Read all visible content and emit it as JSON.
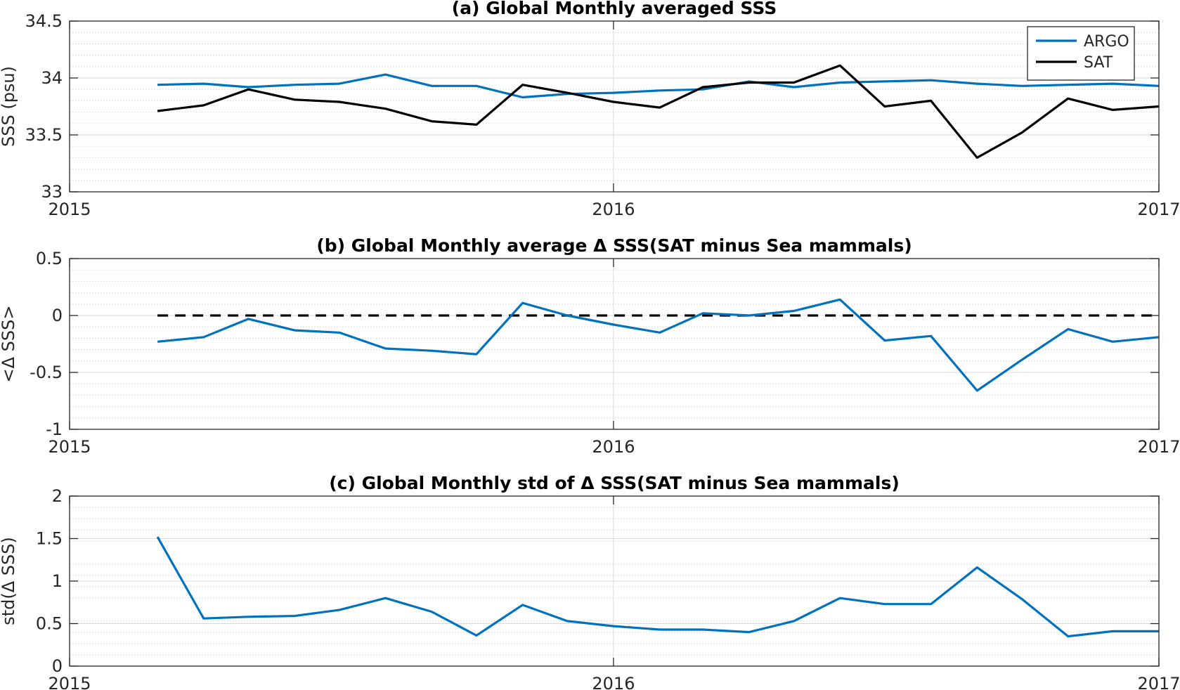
{
  "chart_data": [
    {
      "type": "line",
      "title": "(a) Global Monthly averaged SSS",
      "xlabel": "",
      "ylabel": "SSS (psu)",
      "xlim": [
        "2015-01-01",
        "2017-01-01"
      ],
      "ylim": [
        33,
        34.5
      ],
      "xticks": [
        "2015",
        "2016",
        "2017"
      ],
      "yticks": [
        "33",
        "33.5",
        "34",
        "34.5"
      ],
      "grid": true,
      "legend": "top-right",
      "x": [
        "2015-03-01",
        "2015-04-01",
        "2015-05-01",
        "2015-06-01",
        "2015-07-01",
        "2015-08-01",
        "2015-09-01",
        "2015-10-01",
        "2015-11-01",
        "2015-12-01",
        "2016-01-01",
        "2016-02-01",
        "2016-03-01",
        "2016-04-01",
        "2016-05-01",
        "2016-06-01",
        "2016-07-01",
        "2016-08-01",
        "2016-09-01",
        "2016-10-01",
        "2016-11-01",
        "2016-12-01",
        "2017-01-01"
      ],
      "series": [
        {
          "name": "ARGO",
          "color": "#0072BD",
          "values": [
            33.94,
            33.95,
            33.92,
            33.94,
            33.95,
            34.03,
            33.93,
            33.93,
            33.83,
            33.86,
            33.87,
            33.89,
            33.9,
            33.97,
            33.92,
            33.96,
            33.97,
            33.98,
            33.95,
            33.93,
            33.94,
            33.95,
            33.93
          ]
        },
        {
          "name": "SAT",
          "color": "#000000",
          "values": [
            33.71,
            33.76,
            33.9,
            33.81,
            33.79,
            33.73,
            33.62,
            33.59,
            33.94,
            33.87,
            33.79,
            33.74,
            33.92,
            33.96,
            33.96,
            34.11,
            33.75,
            33.8,
            33.3,
            33.52,
            33.82,
            33.72,
            33.75
          ]
        }
      ]
    },
    {
      "type": "line",
      "title": "(b) Global Monthly average Δ SSS(SAT minus Sea mammals)",
      "xlabel": "",
      "ylabel": "<Δ SSS>",
      "xlim": [
        "2015-01-01",
        "2017-01-01"
      ],
      "ylim": [
        -1,
        0.5
      ],
      "xticks": [
        "2015",
        "2016",
        "2017"
      ],
      "yticks": [
        "-1",
        "-0.5",
        "0",
        "0.5"
      ],
      "grid": true,
      "reference_line": {
        "y": 0,
        "style": "dashed",
        "color": "#000000"
      },
      "x": [
        "2015-03-01",
        "2015-04-01",
        "2015-05-01",
        "2015-06-01",
        "2015-07-01",
        "2015-08-01",
        "2015-09-01",
        "2015-10-01",
        "2015-11-01",
        "2015-12-01",
        "2016-01-01",
        "2016-02-01",
        "2016-03-01",
        "2016-04-01",
        "2016-05-01",
        "2016-06-01",
        "2016-07-01",
        "2016-08-01",
        "2016-09-01",
        "2016-10-01",
        "2016-11-01",
        "2016-12-01",
        "2017-01-01"
      ],
      "series": [
        {
          "color": "#0072BD",
          "values": [
            -0.23,
            -0.19,
            -0.03,
            -0.13,
            -0.15,
            -0.29,
            -0.31,
            -0.34,
            0.11,
            0.0,
            -0.08,
            -0.15,
            0.02,
            0.0,
            0.04,
            0.14,
            -0.22,
            -0.18,
            -0.66,
            -0.39,
            -0.12,
            -0.23,
            -0.19
          ]
        }
      ]
    },
    {
      "type": "line",
      "title": "(c) Global Monthly std of Δ SSS(SAT minus Sea mammals)",
      "xlabel": "",
      "ylabel": "std(Δ SSS)",
      "xlim": [
        "2015-01-01",
        "2017-01-01"
      ],
      "ylim": [
        0,
        2
      ],
      "xticks": [
        "2015",
        "2016",
        "2017"
      ],
      "yticks": [
        "0",
        "0.5",
        "1",
        "1.5",
        "2"
      ],
      "grid": true,
      "x": [
        "2015-03-01",
        "2015-04-01",
        "2015-05-01",
        "2015-06-01",
        "2015-07-01",
        "2015-08-01",
        "2015-09-01",
        "2015-10-01",
        "2015-11-01",
        "2015-12-01",
        "2016-01-01",
        "2016-02-01",
        "2016-03-01",
        "2016-04-01",
        "2016-05-01",
        "2016-06-01",
        "2016-07-01",
        "2016-08-01",
        "2016-09-01",
        "2016-10-01",
        "2016-11-01",
        "2016-12-01",
        "2017-01-01"
      ],
      "series": [
        {
          "color": "#0072BD",
          "values": [
            1.52,
            0.56,
            0.58,
            0.59,
            0.66,
            0.8,
            0.64,
            0.36,
            0.72,
            0.53,
            0.47,
            0.43,
            0.43,
            0.4,
            0.53,
            0.8,
            0.73,
            0.73,
            1.16,
            0.79,
            0.35,
            0.41,
            0.41
          ]
        }
      ]
    }
  ]
}
